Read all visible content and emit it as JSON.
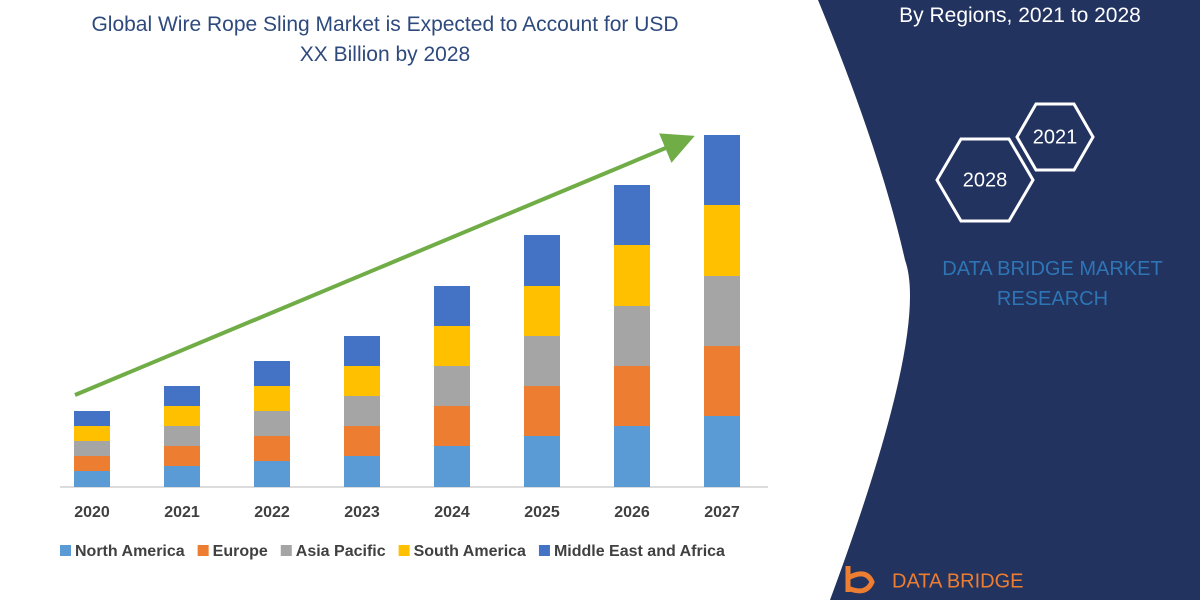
{
  "chart_data": {
    "type": "bar",
    "stacked": true,
    "title": "Global Wire Rope Sling Market is Expected to Account for USD XX Billion by 2028",
    "categories": [
      "2020",
      "2021",
      "2022",
      "2023",
      "2024",
      "2025",
      "2026",
      "2027"
    ],
    "series": [
      {
        "name": "North America",
        "color": "#5b9bd5",
        "values": [
          1.6,
          2.1,
          2.6,
          3.1,
          4.1,
          5.1,
          6.1,
          7.1
        ]
      },
      {
        "name": "Europe",
        "color": "#ed7d31",
        "values": [
          1.5,
          2.0,
          2.5,
          3.0,
          4.0,
          5.0,
          6.0,
          7.0
        ]
      },
      {
        "name": "Asia Pacific",
        "color": "#a5a5a5",
        "values": [
          1.5,
          2.0,
          2.5,
          3.0,
          4.0,
          5.0,
          6.0,
          7.0
        ]
      },
      {
        "name": "South America",
        "color": "#ffc000",
        "values": [
          1.5,
          2.0,
          2.5,
          3.0,
          4.0,
          5.0,
          6.1,
          7.1
        ]
      },
      {
        "name": "Middle East and Africa",
        "color": "#4472c4",
        "values": [
          1.5,
          2.0,
          2.5,
          3.0,
          4.0,
          5.1,
          6.0,
          7.0
        ]
      }
    ],
    "ylim": [
      0,
      36
    ],
    "legend": "bottom"
  },
  "panel": {
    "subtitle": "By Regions, 2021 to 2028",
    "hexagons": [
      "2021",
      "2028"
    ],
    "brand": "DATA BRIDGE MARKET RESEARCH",
    "logo": "DATA BRIDGE"
  }
}
